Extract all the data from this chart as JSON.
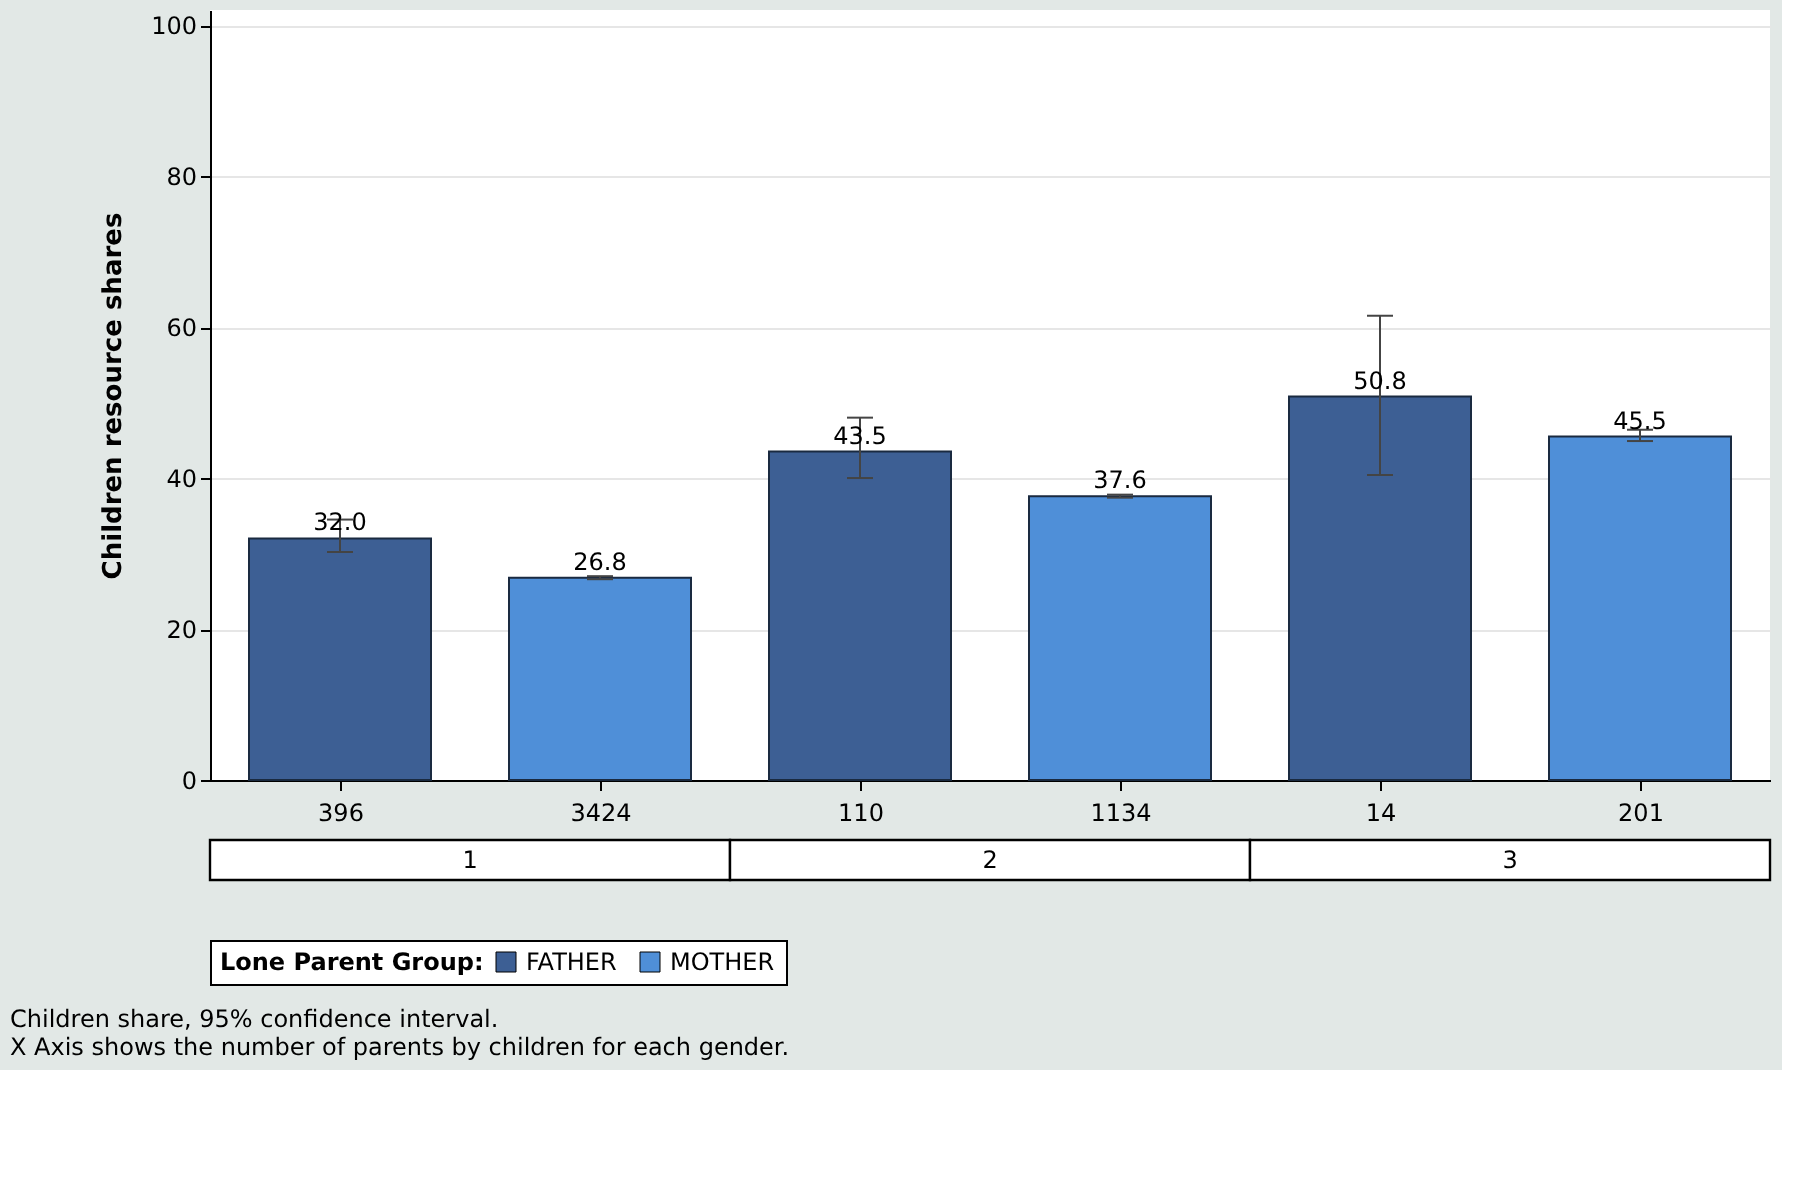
{
  "chart_data": {
    "type": "bar",
    "ylabel": "Children resource shares",
    "legend_title": "Lone Parent Group:",
    "categories": [
      "396",
      "3424",
      "110",
      "1134",
      "14",
      "201"
    ],
    "series": [
      {
        "name": "FATHER",
        "color": "#3d5f94",
        "values": [
          32.0,
          null,
          43.5,
          null,
          50.8,
          null
        ],
        "value_labels": [
          "32.0",
          null,
          "43.5",
          null,
          "50.8",
          null
        ],
        "errors": [
          [
            30.2,
            34.5
          ],
          null,
          [
            40.0,
            48.0
          ],
          null,
          [
            40.4,
            61.5
          ],
          null
        ]
      },
      {
        "name": "MOTHER",
        "color": "#4f8fd8",
        "values": [
          null,
          26.8,
          null,
          37.6,
          null,
          45.5
        ],
        "value_labels": [
          null,
          "26.8",
          null,
          "37.6",
          null,
          "45.5"
        ],
        "errors": [
          null,
          [
            26.6,
            27.0
          ],
          null,
          [
            37.4,
            37.8
          ],
          null,
          [
            44.9,
            46.4
          ]
        ]
      }
    ],
    "ylim": [
      0,
      102
    ],
    "yticks": [
      0,
      20,
      40,
      60,
      80,
      100
    ],
    "grid": "y",
    "legend": "bottom",
    "annotations": [
      "1",
      "2",
      "3",
      "Children share, 95% confidence interval.",
      "X Axis shows the number of parents by children for each gender."
    ]
  }
}
